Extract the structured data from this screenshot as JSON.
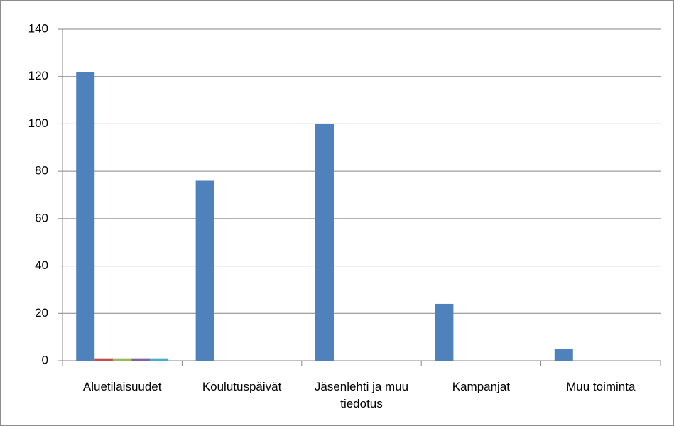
{
  "chart_data": {
    "type": "bar",
    "categories": [
      "Aluetilaisuudet",
      "Koulutuspäivät",
      "Jäsenlehti ja muu tiedotus",
      "Kampanjat",
      "Muu toiminta"
    ],
    "series": [
      {
        "color": "#4f81bd",
        "values": [
          122,
          76,
          100,
          24,
          5
        ]
      },
      {
        "color": "#c0504d",
        "values": [
          1,
          0,
          0,
          0,
          0
        ]
      },
      {
        "color": "#9bbb59",
        "values": [
          1,
          0,
          0,
          0,
          0
        ]
      },
      {
        "color": "#8064a2",
        "values": [
          1,
          0,
          0,
          0,
          0
        ]
      },
      {
        "color": "#4bacc6",
        "values": [
          1,
          0,
          0,
          0,
          0
        ]
      }
    ],
    "ylim": [
      0,
      140
    ],
    "yticks": [
      0,
      20,
      40,
      60,
      80,
      100,
      120,
      140
    ],
    "grid": true
  }
}
